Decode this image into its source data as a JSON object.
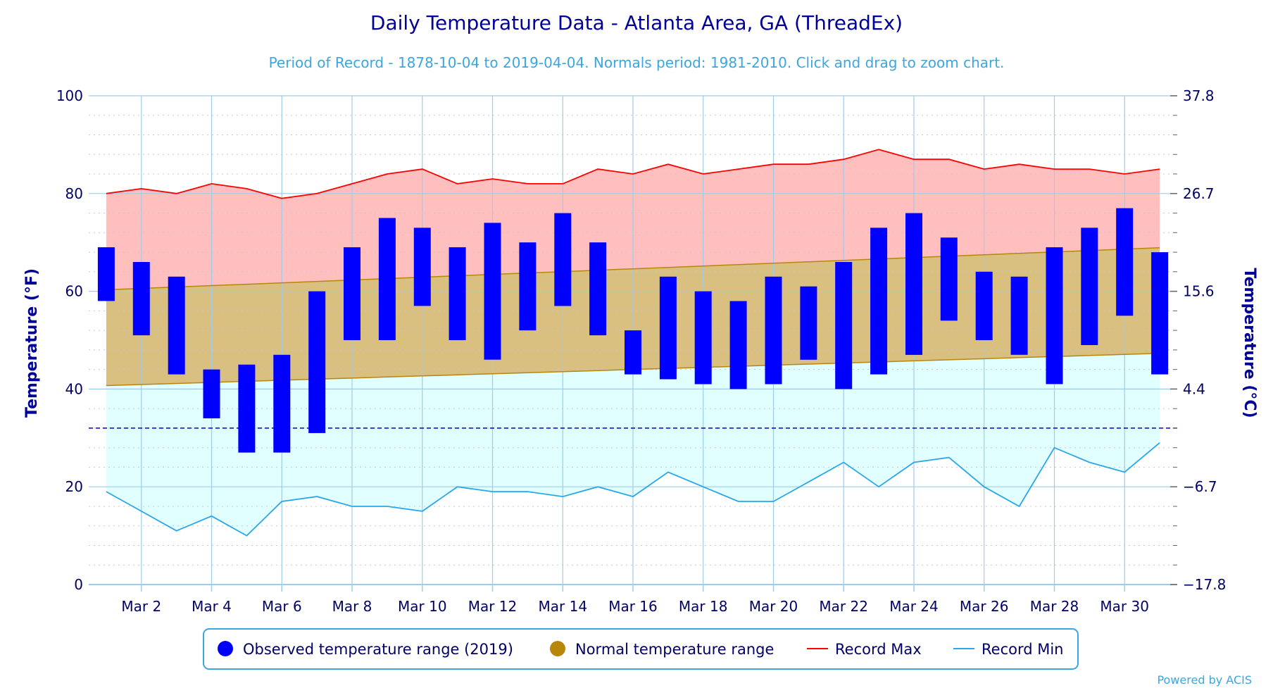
{
  "chart_data": {
    "type": "bar",
    "title": "Daily Temperature Data - Atlanta Area, GA (ThreadEx)",
    "subtitle": "Period of Record - 1878-10-04 to 2019-04-04. Normals period: 1981-2010. Click and drag to zoom chart.",
    "ylabel_left": "Temperature (°F)",
    "ylabel_right": "Temperature (°C)",
    "ylim": [
      0,
      100
    ],
    "yticks_left": [
      "0",
      "20",
      "40",
      "60",
      "80",
      "100"
    ],
    "yticks_right": [
      "−17.8",
      "−6.7",
      "4.4",
      "15.6",
      "26.7",
      "37.8"
    ],
    "days": [
      1,
      2,
      3,
      4,
      5,
      6,
      7,
      8,
      9,
      10,
      11,
      12,
      13,
      14,
      15,
      16,
      17,
      18,
      19,
      20,
      21,
      22,
      23,
      24,
      25,
      26,
      27,
      28,
      29,
      30,
      31
    ],
    "x_tick_labels": [
      "Mar 2",
      "Mar 4",
      "Mar 6",
      "Mar 8",
      "Mar 10",
      "Mar 12",
      "Mar 14",
      "Mar 16",
      "Mar 18",
      "Mar 20",
      "Mar 22",
      "Mar 24",
      "Mar 26",
      "Mar 28",
      "Mar 30"
    ],
    "x_tick_days": [
      2,
      4,
      6,
      8,
      10,
      12,
      14,
      16,
      18,
      20,
      22,
      24,
      26,
      28,
      30
    ],
    "freezing_line": 32,
    "series": [
      {
        "name": "Observed temperature range (2019)",
        "color": "#0000ff",
        "low": [
          58,
          51,
          43,
          34,
          27,
          27,
          31,
          50,
          50,
          57,
          50,
          46,
          52,
          57,
          51,
          43,
          42,
          41,
          40,
          41,
          46,
          40,
          43,
          47,
          54,
          50,
          47,
          41,
          49,
          55,
          43
        ],
        "high": [
          69,
          66,
          63,
          44,
          45,
          47,
          60,
          69,
          75,
          73,
          69,
          74,
          70,
          76,
          70,
          52,
          63,
          60,
          58,
          63,
          61,
          66,
          73,
          76,
          71,
          64,
          63,
          69,
          73,
          77,
          68
        ]
      },
      {
        "name": "Normal temperature range",
        "color": "#b8860b",
        "low_start": 40.7,
        "low_end": 47.3,
        "high_start": 60.3,
        "high_end": 68.9
      },
      {
        "name": "Record Max",
        "color": "#ff0000",
        "values": [
          80,
          81,
          80,
          82,
          81,
          79,
          80,
          82,
          84,
          85,
          82,
          83,
          82,
          82,
          85,
          84,
          86,
          84,
          85,
          86,
          86,
          87,
          89,
          87,
          87,
          85,
          86,
          85,
          85,
          84,
          85
        ]
      },
      {
        "name": "Record Min",
        "color": "#2aa7e8",
        "values": [
          19,
          15,
          11,
          14,
          10,
          17,
          18,
          16,
          16,
          15,
          20,
          19,
          19,
          18,
          20,
          18,
          23,
          20,
          17,
          17,
          21,
          25,
          20,
          25,
          26,
          20,
          16,
          28,
          25,
          23,
          29
        ]
      }
    ],
    "colors": {
      "title": "#000099",
      "subtitle": "#3aa7e0",
      "axis_text": "#000066",
      "record_band": "#ffbfbf",
      "normal_band": "#d9bf80",
      "min_band": "#e2ffff",
      "grid": "#a0cce8",
      "freezing": "#0000cc",
      "legend_border": "#3aa7e0"
    },
    "legend_position": "bottom-center",
    "credit": "Powered by ACIS"
  }
}
